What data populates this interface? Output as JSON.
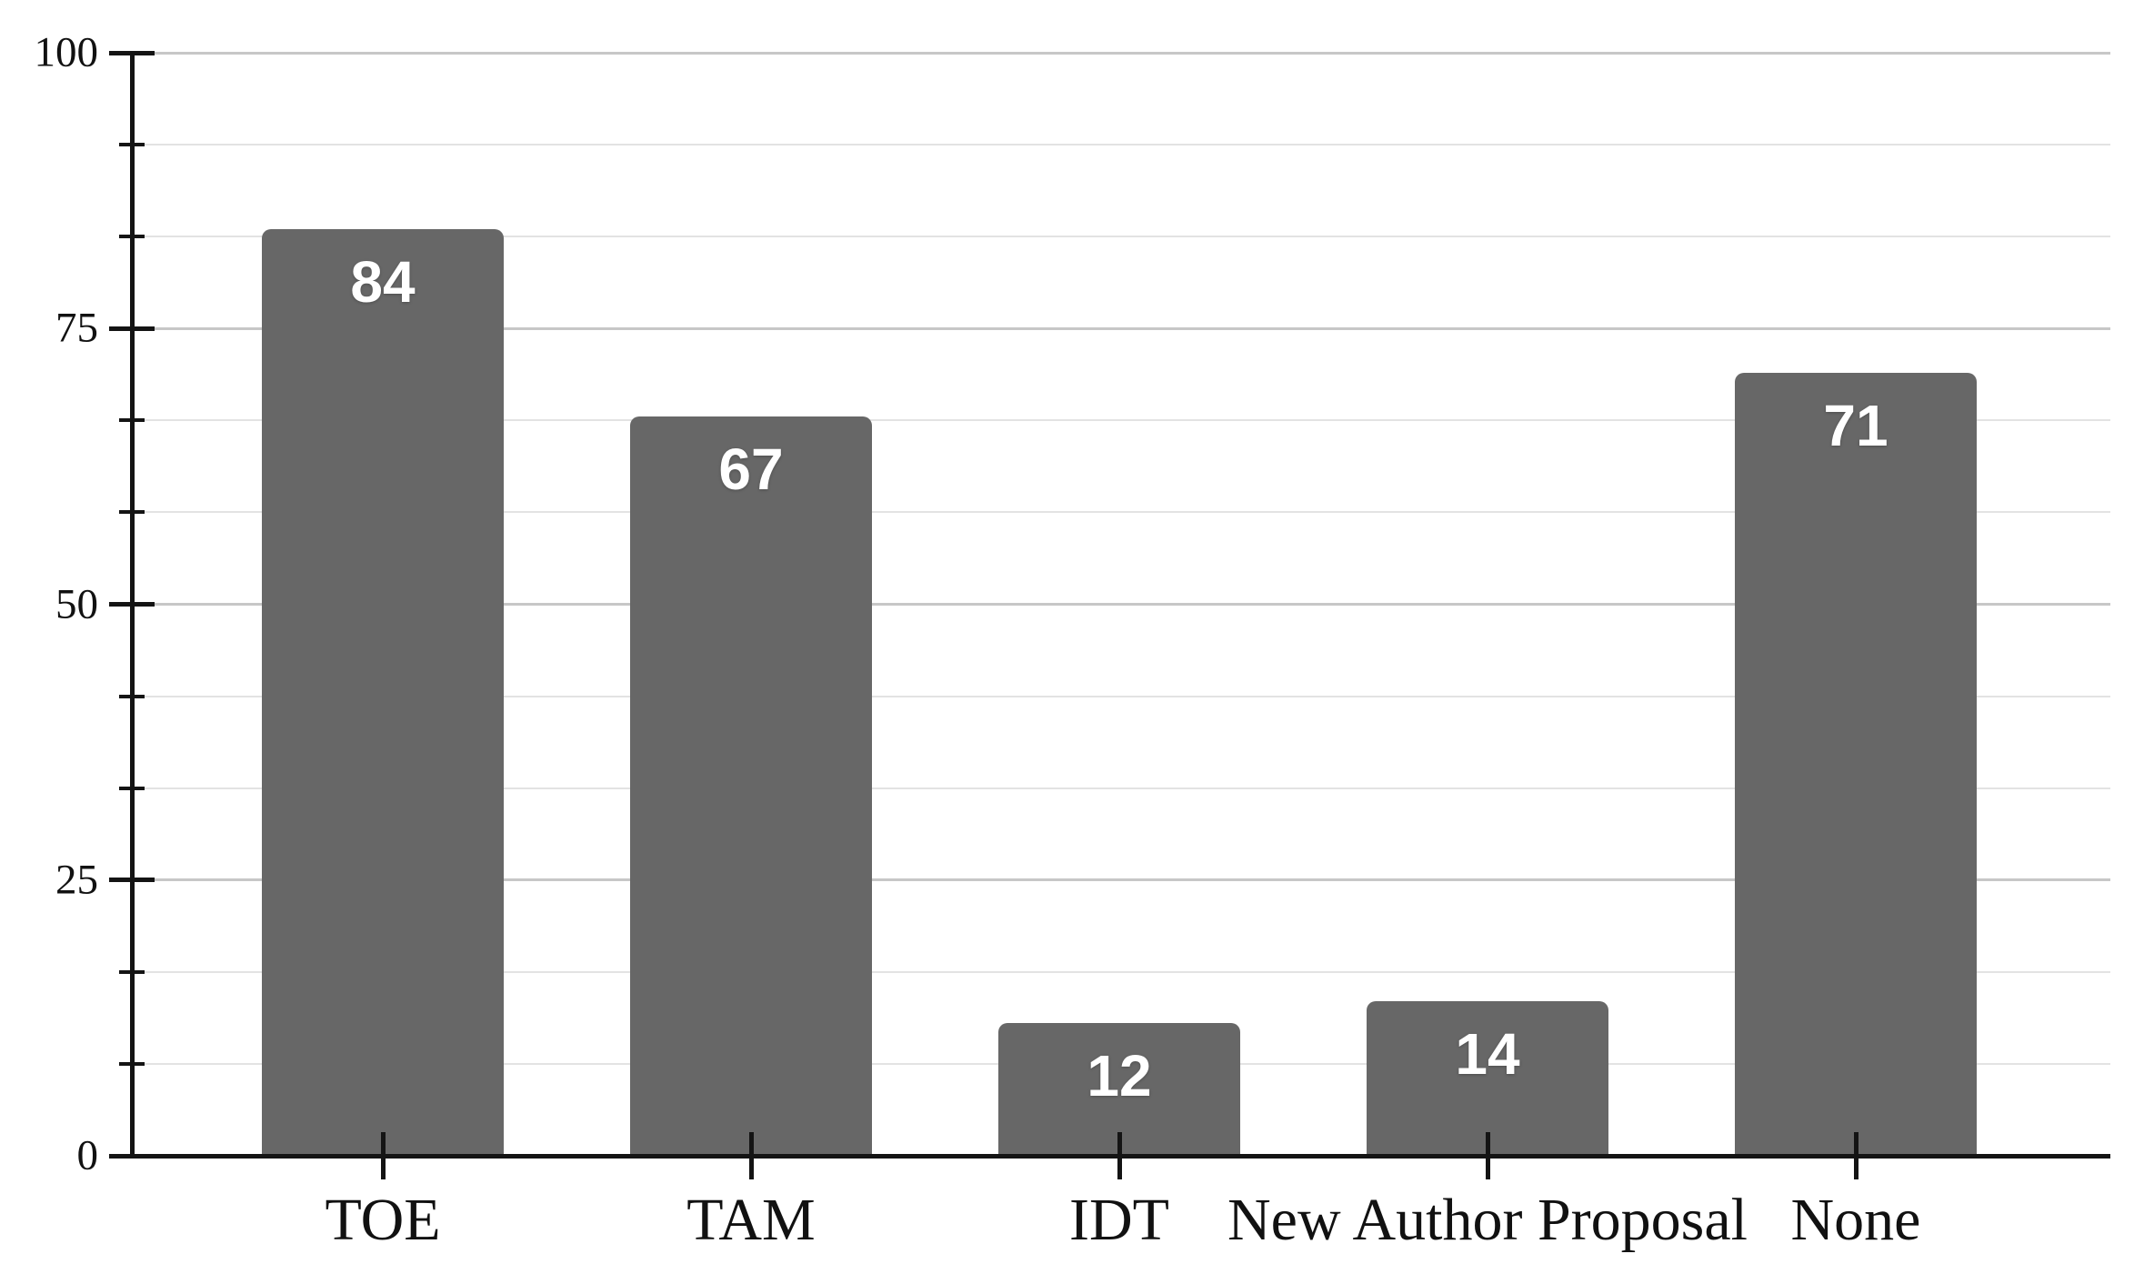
{
  "chart_data": {
    "type": "bar",
    "title": "",
    "xlabel": "",
    "ylabel": "",
    "categories": [
      "TOE",
      "TAM",
      "IDT",
      "New Author Proposal",
      "None"
    ],
    "values": [
      84,
      67,
      12,
      14,
      71
    ],
    "value_labels": [
      "84",
      "67",
      "12",
      "14",
      "71"
    ],
    "ylim": [
      0,
      100
    ],
    "yticks_major": [
      0,
      25,
      50,
      75,
      100
    ],
    "ytick_labels": [
      "0",
      "25",
      "50",
      "75",
      "100"
    ],
    "minor_divisions_per_major": 3,
    "grid": "horizontal gridlines at major and minor ticks",
    "legend_position": "none",
    "colors": {
      "bar_fill": "#676767",
      "value_label_text": "#ffffff",
      "axis_and_text": "#141414",
      "major_gridline": "#c7c7c7",
      "minor_gridline": "#e3e3e3",
      "background": "#ffffff"
    }
  }
}
